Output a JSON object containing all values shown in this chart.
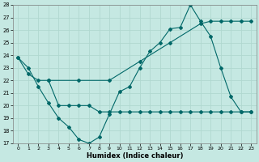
{
  "xlabel": "Humidex (Indice chaleur)",
  "bg_color": "#c5e8e2",
  "line_color": "#006868",
  "grid_color": "#b0d8d0",
  "ylim": [
    17,
    28
  ],
  "xlim_min": -0.5,
  "xlim_max": 23.5,
  "yticks": [
    17,
    18,
    19,
    20,
    21,
    22,
    23,
    24,
    25,
    26,
    27,
    28
  ],
  "xticks": [
    0,
    1,
    2,
    3,
    4,
    5,
    6,
    7,
    8,
    9,
    10,
    11,
    12,
    13,
    14,
    15,
    16,
    17,
    18,
    19,
    20,
    21,
    22,
    23
  ],
  "line1_x": [
    0,
    1,
    2,
    3,
    4,
    5,
    6,
    7,
    8,
    9,
    10,
    11,
    12,
    13,
    14,
    15,
    16,
    17,
    18,
    19,
    20,
    21,
    22,
    23
  ],
  "line1_y": [
    23.8,
    23.0,
    21.5,
    20.2,
    19.0,
    18.3,
    17.3,
    17.0,
    17.5,
    19.3,
    21.1,
    21.5,
    23.0,
    24.3,
    25.0,
    26.1,
    26.2,
    28.0,
    26.7,
    25.5,
    23.0,
    20.7,
    19.5,
    19.5
  ],
  "line2_x": [
    3,
    4,
    5,
    6,
    7,
    8,
    9,
    10,
    11,
    12,
    13,
    14,
    15,
    16,
    17,
    18,
    19,
    20,
    21,
    22,
    23
  ],
  "line2_y": [
    22.0,
    20.0,
    20.0,
    20.0,
    20.0,
    19.5,
    19.5,
    19.5,
    19.5,
    19.5,
    19.5,
    19.5,
    19.5,
    19.5,
    19.5,
    19.5,
    19.5,
    19.5,
    19.5,
    19.5,
    19.5
  ],
  "line3_x": [
    0,
    1,
    2,
    3,
    6,
    9,
    12,
    15,
    18,
    19,
    20,
    21,
    22,
    23
  ],
  "line3_y": [
    23.8,
    22.5,
    22.0,
    22.0,
    22.0,
    22.0,
    23.5,
    25.0,
    26.5,
    26.7,
    26.7,
    26.7,
    26.7,
    26.7
  ]
}
